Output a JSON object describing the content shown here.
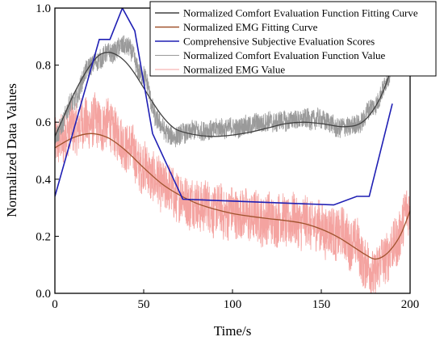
{
  "chart_data": {
    "type": "line",
    "xlabel": "Time/s",
    "ylabel": "Normalized Data Values",
    "xlim": [
      0,
      200
    ],
    "ylim": [
      0,
      1.0
    ],
    "x_ticks": [
      0,
      50,
      100,
      150,
      200
    ],
    "x_tick_labels": [
      "0",
      "50",
      "100",
      "150",
      "200"
    ],
    "y_ticks": [
      0.0,
      0.2,
      0.4,
      0.6,
      0.8,
      1.0
    ],
    "y_tick_labels": [
      "0.0",
      "0.2",
      "0.4",
      "0.6",
      "0.8",
      "1.0"
    ],
    "grid": false,
    "legend_position": "top-right",
    "series": [
      {
        "name": "Normalized Comfort Evaluation Function Fitting Curve",
        "color": "#404040",
        "kind": "smooth-line",
        "points": [
          [
            0,
            0.55
          ],
          [
            5,
            0.62
          ],
          [
            10,
            0.69
          ],
          [
            15,
            0.75
          ],
          [
            20,
            0.8
          ],
          [
            25,
            0.835
          ],
          [
            30,
            0.845
          ],
          [
            35,
            0.835
          ],
          [
            40,
            0.81
          ],
          [
            45,
            0.77
          ],
          [
            50,
            0.72
          ],
          [
            55,
            0.67
          ],
          [
            60,
            0.625
          ],
          [
            65,
            0.59
          ],
          [
            70,
            0.57
          ],
          [
            80,
            0.555
          ],
          [
            90,
            0.55
          ],
          [
            100,
            0.555
          ],
          [
            110,
            0.565
          ],
          [
            120,
            0.58
          ],
          [
            130,
            0.595
          ],
          [
            140,
            0.6
          ],
          [
            150,
            0.595
          ],
          [
            160,
            0.585
          ],
          [
            165,
            0.585
          ],
          [
            170,
            0.59
          ],
          [
            175,
            0.61
          ],
          [
            180,
            0.65
          ],
          [
            185,
            0.71
          ],
          [
            190,
            0.8
          ]
        ]
      },
      {
        "name": "Normalized EMG Fitting Curve",
        "color": "#a0522d",
        "kind": "smooth-line",
        "points": [
          [
            0,
            0.51
          ],
          [
            10,
            0.545
          ],
          [
            20,
            0.56
          ],
          [
            30,
            0.545
          ],
          [
            40,
            0.5
          ],
          [
            50,
            0.44
          ],
          [
            60,
            0.385
          ],
          [
            70,
            0.345
          ],
          [
            80,
            0.315
          ],
          [
            90,
            0.295
          ],
          [
            100,
            0.28
          ],
          [
            110,
            0.27
          ],
          [
            120,
            0.262
          ],
          [
            130,
            0.255
          ],
          [
            140,
            0.245
          ],
          [
            150,
            0.225
          ],
          [
            160,
            0.195
          ],
          [
            170,
            0.155
          ],
          [
            175,
            0.135
          ],
          [
            180,
            0.12
          ],
          [
            185,
            0.13
          ],
          [
            190,
            0.16
          ],
          [
            195,
            0.21
          ],
          [
            200,
            0.29
          ]
        ]
      },
      {
        "name": "Comprehensive Subjective Evaluation Scores",
        "color": "#1f1fb4",
        "kind": "polyline",
        "points": [
          [
            0,
            0.34
          ],
          [
            25,
            0.89
          ],
          [
            31,
            0.89
          ],
          [
            38,
            1.0
          ],
          [
            45,
            0.92
          ],
          [
            55,
            0.56
          ],
          [
            72,
            0.33
          ],
          [
            157,
            0.31
          ],
          [
            170,
            0.34
          ],
          [
            177,
            0.34
          ],
          [
            190,
            0.665
          ]
        ]
      },
      {
        "name": "Normalized Comfort Evaluation Function Value",
        "color": "#9a9a9a",
        "kind": "noisy",
        "x_range": [
          0,
          190
        ],
        "base": [
          [
            0,
            0.55
          ],
          [
            10,
            0.67
          ],
          [
            20,
            0.8
          ],
          [
            30,
            0.84
          ],
          [
            40,
            0.87
          ],
          [
            50,
            0.76
          ],
          [
            58,
            0.6
          ],
          [
            65,
            0.55
          ],
          [
            80,
            0.57
          ],
          [
            100,
            0.58
          ],
          [
            120,
            0.6
          ],
          [
            140,
            0.61
          ],
          [
            150,
            0.61
          ],
          [
            160,
            0.58
          ],
          [
            170,
            0.59
          ],
          [
            180,
            0.66
          ],
          [
            190,
            0.78
          ]
        ],
        "amplitude": 0.035
      },
      {
        "name": "Normalized EMG Value",
        "color": "#f4a3a0",
        "kind": "noisy",
        "x_range": [
          0,
          200
        ],
        "base": [
          [
            0,
            0.52
          ],
          [
            10,
            0.58
          ],
          [
            20,
            0.6
          ],
          [
            30,
            0.59
          ],
          [
            40,
            0.52
          ],
          [
            50,
            0.44
          ],
          [
            60,
            0.38
          ],
          [
            70,
            0.34
          ],
          [
            80,
            0.31
          ],
          [
            100,
            0.28
          ],
          [
            120,
            0.26
          ],
          [
            140,
            0.25
          ],
          [
            160,
            0.21
          ],
          [
            170,
            0.17
          ],
          [
            175,
            0.1
          ],
          [
            180,
            0.07
          ],
          [
            185,
            0.12
          ],
          [
            190,
            0.16
          ],
          [
            200,
            0.3
          ]
        ],
        "amplitude": 0.09
      }
    ]
  }
}
